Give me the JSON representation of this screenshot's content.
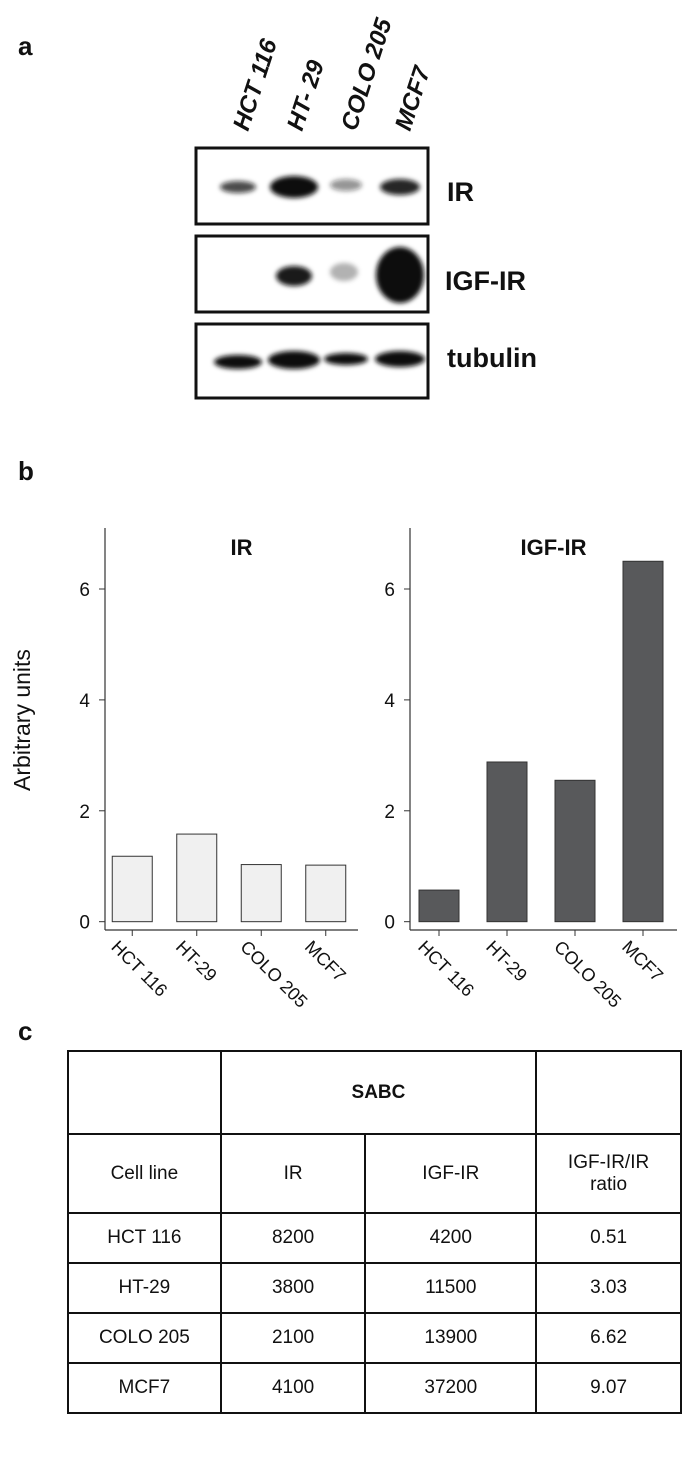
{
  "panel_labels": [
    "a",
    "b",
    "c"
  ],
  "blot": {
    "lanes": [
      "HCT 116",
      "HT- 29",
      "COLO 205",
      "MCF7"
    ],
    "rows": [
      "IR",
      "IGF-IR",
      "tubulin"
    ]
  },
  "chart_data": [
    {
      "type": "bar",
      "title": "IR",
      "ylabel": "Arbitrary units",
      "categories": [
        "HCT 116",
        "HT-29",
        "COLO 205",
        "MCF7"
      ],
      "values": [
        1.18,
        1.58,
        1.03,
        1.02
      ],
      "color": "#f0f0f0",
      "ylim": [
        -0.15,
        7.1
      ],
      "yticks": [
        0,
        2,
        4,
        6
      ]
    },
    {
      "type": "bar",
      "title": "IGF-IR",
      "categories": [
        "HCT 116",
        "HT-29",
        "COLO 205",
        "MCF7"
      ],
      "values": [
        0.57,
        2.88,
        2.55,
        6.5
      ],
      "color": "#58595b",
      "ylim": [
        -0.15,
        7.1
      ],
      "yticks": [
        0,
        2,
        4,
        6
      ]
    }
  ],
  "table": {
    "group": "SABC",
    "columns": [
      "Cell line",
      "IR",
      "IGF-IR",
      "IGF-IR/IR ratio"
    ],
    "rows": [
      [
        "HCT 116",
        8200,
        4200,
        0.51
      ],
      [
        "HT-29",
        3800,
        11500,
        3.03
      ],
      [
        "COLO 205",
        2100,
        13900,
        6.62
      ],
      [
        "MCF7",
        4100,
        37200,
        9.07
      ]
    ]
  }
}
